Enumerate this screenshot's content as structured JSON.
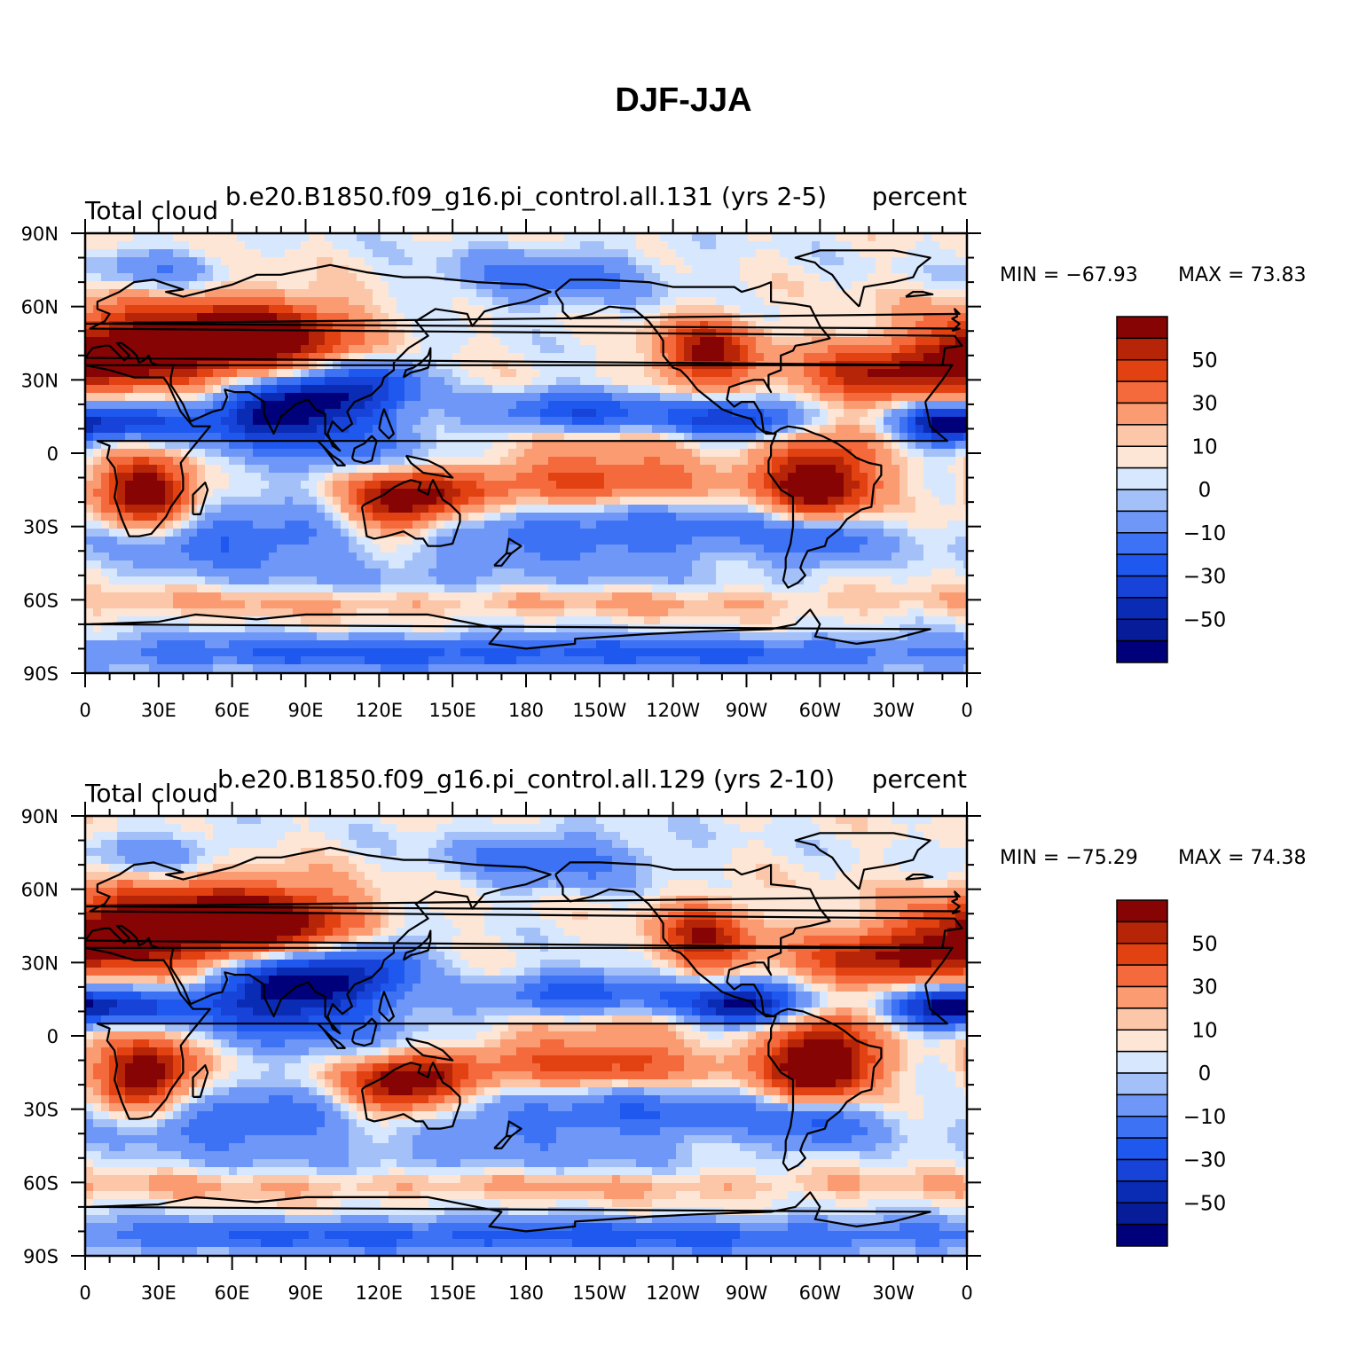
{
  "title": "DJF-JJA",
  "colors": {
    "scale": [
      "#00007a",
      "#0a2bb3",
      "#1743d8",
      "#1f58ee",
      "#3d72f5",
      "#6f97f7",
      "#a3c0f9",
      "#d6e7fe",
      "#fde6d6",
      "#fcc6a8",
      "#fb9b72",
      "#f56a3c",
      "#e24112",
      "#b72509",
      "#860404"
    ],
    "land_outline": "#000000"
  },
  "axes": {
    "lat_labels": [
      "90N",
      "60N",
      "30N",
      "0",
      "30S",
      "60S",
      "90S"
    ],
    "lon_labels": [
      "0",
      "30E",
      "60E",
      "90E",
      "120E",
      "150E",
      "180",
      "150W",
      "120W",
      "90W",
      "60W",
      "30W",
      "0"
    ]
  },
  "colorbar": {
    "labels": [
      "50",
      "30",
      "10",
      "0",
      "−10",
      "−30",
      "−50"
    ]
  },
  "panels": [
    {
      "left_title": "Total cloud",
      "center_title": "b.e20.B1850.f09_g16.pi_control.all.131 (yrs 2-5)",
      "right_title": "percent",
      "min_label": "MIN =",
      "min_value": "−67.93",
      "max_label": "MAX =",
      "max_value": "73.83"
    },
    {
      "left_title": "Total cloud",
      "center_title": "b.e20.B1850.f09_g16.pi_control.all.129 (yrs 2-10)",
      "right_title": "percent",
      "min_label": "MIN =",
      "min_value": "−75.29",
      "max_label": "MAX =",
      "max_value": "74.38"
    }
  ]
}
